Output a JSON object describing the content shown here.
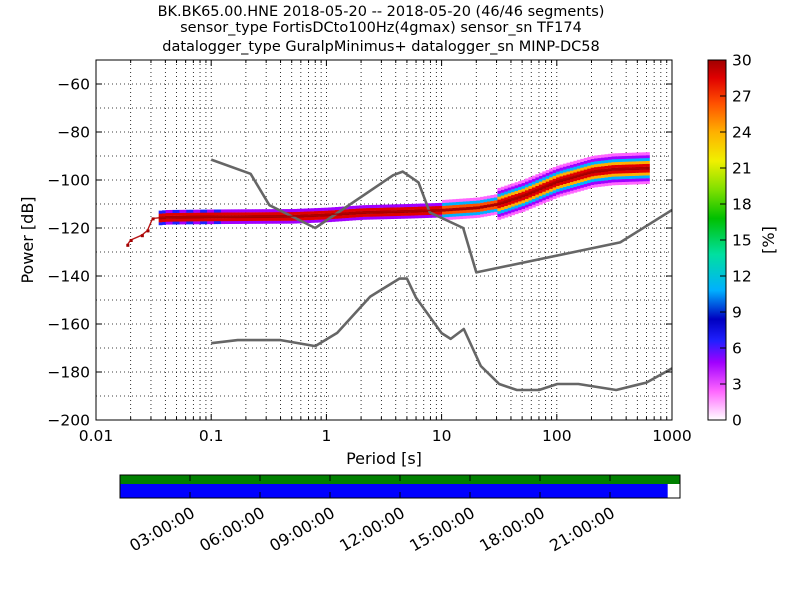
{
  "title": {
    "lines": [
      "BK.BK65.00.HNE   2018-05-20 -- 2018-05-20  (46/46 segments)",
      "sensor_type FortisDCto100Hz(4gmax) sensor_sn TF174",
      "datalogger_type GuralpMinimus+ datalogger_sn MINP-DC58"
    ]
  },
  "colorbar": {
    "label": "[%]",
    "ticks": [
      "0",
      "3",
      "6",
      "9",
      "12",
      "15",
      "18",
      "21",
      "24",
      "27",
      "30"
    ],
    "range": [
      0,
      30
    ],
    "colors": [
      "#ffffff",
      "#ff66ff",
      "#a000ff",
      "#2020ff",
      "#0000c0",
      "#00b0ff",
      "#00e0a0",
      "#00c000",
      "#80e000",
      "#f0f000",
      "#ffb000",
      "#ff5000",
      "#e00000",
      "#a00000"
    ]
  },
  "timeline": {
    "ticks": [
      "03:00:00",
      "06:00:00",
      "09:00:00",
      "12:00:00",
      "15:00:00",
      "18:00:00",
      "21:00:00"
    ],
    "coverage_fraction": 0.978,
    "top_bar_color": "#008000",
    "coverage_color": "#0000ff"
  },
  "chart_data": {
    "type": "heatmap",
    "xlabel": "Period [s]",
    "ylabel": "Power [dB]",
    "xscale": "log",
    "xlim": [
      0.01,
      1000
    ],
    "ylim": [
      -200,
      -50
    ],
    "xticks": [
      "0.01",
      "0.1",
      "1",
      "10",
      "100",
      "1000"
    ],
    "yticks": [
      "−200",
      "−180",
      "−160",
      "−140",
      "−120",
      "−100",
      "−80",
      "−60"
    ],
    "grid": "dotted",
    "series": [
      {
        "role": "new_high_noise_model",
        "color": "#666666",
        "period": [
          0.1,
          0.22,
          0.32,
          0.8,
          3.8,
          4.6,
          6.3,
          7.9,
          15.4,
          20,
          354.8,
          1000
        ],
        "power": [
          -91.5,
          -97.4,
          -110.5,
          -120,
          -98,
          -96.5,
          -101,
          -113.5,
          -120,
          -138.5,
          -126,
          -112.5
        ]
      },
      {
        "role": "new_low_noise_model",
        "color": "#666666",
        "period": [
          0.1,
          0.17,
          0.4,
          0.8,
          1.24,
          2.4,
          4.3,
          5,
          6,
          10,
          12,
          15.6,
          21.9,
          31.6,
          45,
          70,
          101,
          154,
          328,
          600,
          1000
        ],
        "power": [
          -168,
          -166.7,
          -166.7,
          -169.2,
          -163.7,
          -148.6,
          -141.1,
          -141.1,
          -149,
          -163.8,
          -166.2,
          -162.1,
          -177.5,
          -185,
          -187.5,
          -187.5,
          -185,
          -185,
          -187.5,
          -184.4,
          -178.5
        ]
      },
      {
        "role": "ppsd_mode",
        "color": "#b00000",
        "period": [
          0.0187,
          0.02,
          0.025,
          0.028,
          0.031,
          0.04,
          0.06,
          0.1,
          0.2,
          0.5,
          1,
          2,
          5,
          10,
          20,
          30,
          50,
          100,
          200,
          300,
          600
        ],
        "power": [
          -127,
          -125,
          -123,
          -121,
          -116,
          -115.5,
          -115.4,
          -115.3,
          -115.2,
          -115.1,
          -114.5,
          -113.5,
          -113,
          -112.5,
          -111.5,
          -110,
          -106.5,
          -100.5,
          -96.5,
          -95.5,
          -95
        ]
      }
    ]
  }
}
